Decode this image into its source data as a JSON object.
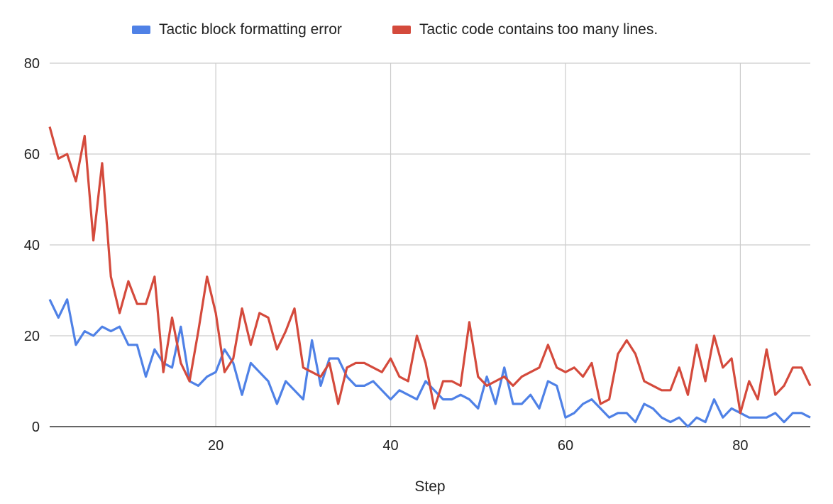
{
  "chart_data": {
    "type": "line",
    "xlabel": "Step",
    "ylabel": "",
    "xlim": [
      1,
      88
    ],
    "ylim": [
      0,
      80
    ],
    "x_ticks": [
      20,
      40,
      60,
      80
    ],
    "y_ticks": [
      0,
      20,
      40,
      60,
      80
    ],
    "grid": true,
    "legend_position": "top",
    "x": [
      1,
      2,
      3,
      4,
      5,
      6,
      7,
      8,
      9,
      10,
      11,
      12,
      13,
      14,
      15,
      16,
      17,
      18,
      19,
      20,
      21,
      22,
      23,
      24,
      25,
      26,
      27,
      28,
      29,
      30,
      31,
      32,
      33,
      34,
      35,
      36,
      37,
      38,
      39,
      40,
      41,
      42,
      43,
      44,
      45,
      46,
      47,
      48,
      49,
      50,
      51,
      52,
      53,
      54,
      55,
      56,
      57,
      58,
      59,
      60,
      61,
      62,
      63,
      64,
      65,
      66,
      67,
      68,
      69,
      70,
      71,
      72,
      73,
      74,
      75,
      76,
      77,
      78,
      79,
      80,
      81,
      82,
      83,
      84,
      85,
      86,
      87,
      88
    ],
    "series": [
      {
        "name": "Tactic block formatting error",
        "color": "#4f81e6",
        "values": [
          28,
          24,
          28,
          18,
          21,
          20,
          22,
          21,
          22,
          18,
          18,
          11,
          17,
          14,
          13,
          22,
          10,
          9,
          11,
          12,
          17,
          14,
          7,
          14,
          12,
          10,
          5,
          10,
          8,
          6,
          19,
          9,
          15,
          15,
          11,
          9,
          9,
          10,
          8,
          6,
          8,
          7,
          6,
          10,
          8,
          6,
          6,
          7,
          6,
          4,
          11,
          5,
          13,
          5,
          5,
          7,
          4,
          10,
          9,
          2,
          3,
          5,
          6,
          4,
          2,
          3,
          3,
          1,
          5,
          4,
          2,
          1,
          2,
          0,
          2,
          1,
          6,
          2,
          4,
          3,
          2,
          2,
          2,
          3,
          1,
          3,
          3,
          2
        ]
      },
      {
        "name": "Tactic code contains too many lines.",
        "color": "#d44a3c",
        "values": [
          66,
          59,
          60,
          54,
          64,
          41,
          58,
          33,
          25,
          32,
          27,
          27,
          33,
          12,
          24,
          14,
          10,
          21,
          33,
          25,
          12,
          15,
          26,
          18,
          25,
          24,
          17,
          21,
          26,
          13,
          12,
          11,
          14,
          5,
          13,
          14,
          14,
          13,
          12,
          15,
          11,
          10,
          20,
          14,
          4,
          10,
          10,
          9,
          23,
          11,
          9,
          10,
          11,
          9,
          11,
          12,
          13,
          18,
          13,
          12,
          13,
          11,
          14,
          5,
          6,
          16,
          19,
          16,
          10,
          9,
          8,
          8,
          13,
          7,
          18,
          10,
          20,
          13,
          15,
          3,
          10,
          6,
          17,
          7,
          9,
          13,
          13,
          9
        ]
      }
    ]
  }
}
